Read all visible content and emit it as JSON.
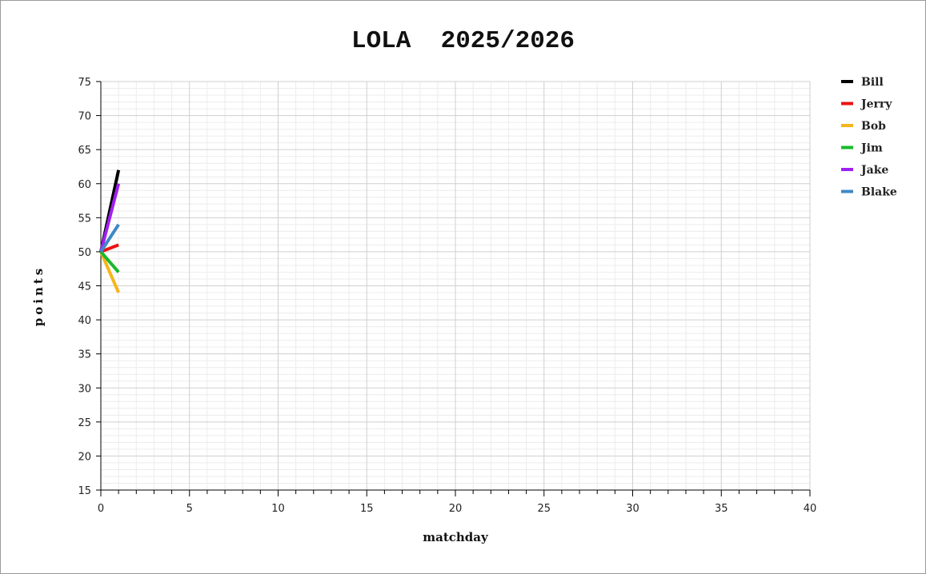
{
  "chart_data": {
    "type": "line",
    "title": "LOLA  2025/2026",
    "xlabel": "matchday",
    "ylabel": "points",
    "xlim": [
      0,
      40
    ],
    "ylim": [
      15,
      75
    ],
    "x_major_step": 5,
    "y_major_step": 5,
    "grid": true,
    "legend_position": "right",
    "series": [
      {
        "name": "Bill",
        "color": "#000000",
        "x": [
          0,
          1
        ],
        "values": [
          50,
          62
        ]
      },
      {
        "name": "Jerry",
        "color": "#ee1111",
        "x": [
          0,
          1
        ],
        "values": [
          50,
          51
        ]
      },
      {
        "name": "Bob",
        "color": "#f7b51c",
        "x": [
          0,
          1
        ],
        "values": [
          50,
          44
        ]
      },
      {
        "name": "Jim",
        "color": "#19b92b",
        "x": [
          0,
          1
        ],
        "values": [
          50,
          47
        ]
      },
      {
        "name": "Jake",
        "color": "#a020f0",
        "x": [
          0,
          1
        ],
        "values": [
          50,
          60
        ]
      },
      {
        "name": "Blake",
        "color": "#3f88c5",
        "x": [
          0,
          1
        ],
        "values": [
          50,
          54
        ]
      }
    ]
  }
}
